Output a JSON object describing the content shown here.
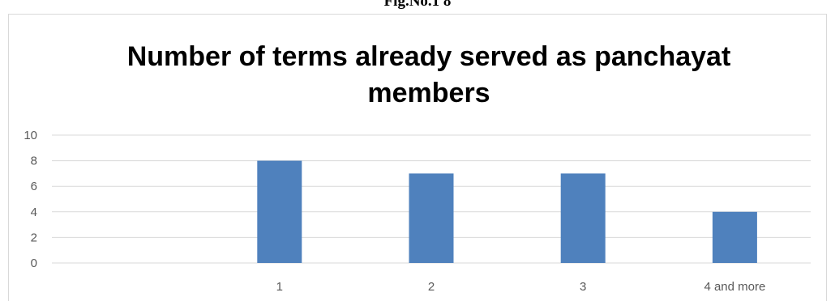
{
  "figure": {
    "caption": "Fig.No.1 8"
  },
  "chart_data": {
    "type": "bar",
    "title_lines": [
      "Number of terms already served as panchayat",
      "members"
    ],
    "categories": [
      "",
      "1",
      "2",
      "3",
      "4 and more"
    ],
    "values": [
      null,
      8,
      7,
      7,
      4
    ],
    "ylim": [
      0,
      10
    ],
    "yticks": [
      0,
      2,
      4,
      6,
      8,
      10
    ],
    "grid": true,
    "legend": "none",
    "colors": {
      "bar": "#4f81bd",
      "grid": "#d9d9d9",
      "axis": "#d9d9d9"
    }
  }
}
